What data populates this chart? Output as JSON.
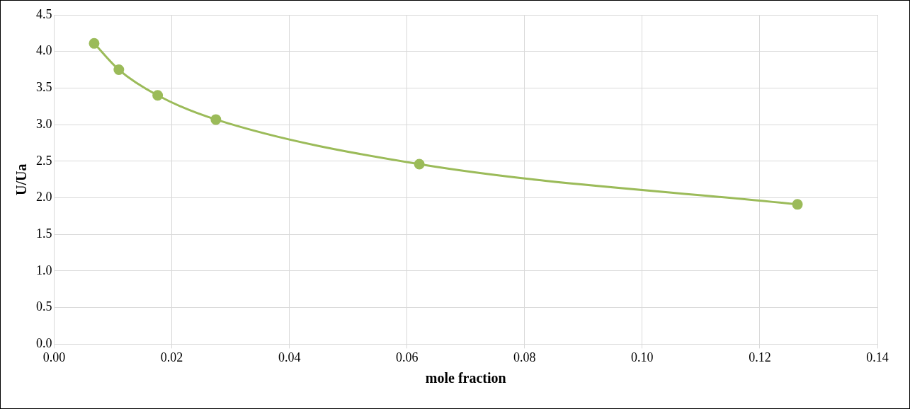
{
  "chart_data": {
    "type": "line",
    "xlabel": "mole fraction",
    "ylabel": "U/Ua",
    "x": [
      0.0068,
      0.011,
      0.0176,
      0.0275,
      0.0621,
      0.1264
    ],
    "series": [
      {
        "color": "#9bbb59",
        "values": [
          4.11,
          3.75,
          3.4,
          3.07,
          2.46,
          1.91
        ]
      }
    ],
    "xlim": [
      0,
      0.14
    ],
    "xticks": [
      {
        "value": 0,
        "label": "0.00"
      },
      {
        "value": 0.02,
        "label": "0.02"
      },
      {
        "value": 0.04,
        "label": "0.04"
      },
      {
        "value": 0.06,
        "label": "0.06"
      },
      {
        "value": 0.08,
        "label": "0.08"
      },
      {
        "value": 0.1,
        "label": "0.10"
      },
      {
        "value": 0.12,
        "label": "0.12"
      },
      {
        "value": 0.14,
        "label": "0.14"
      }
    ],
    "ylim": [
      0,
      4.5
    ],
    "yticks": [
      {
        "value": 0,
        "label": "0.0"
      },
      {
        "value": 0.5,
        "label": "0.5"
      },
      {
        "value": 1,
        "label": "1.0"
      },
      {
        "value": 1.5,
        "label": "1.5"
      },
      {
        "value": 2,
        "label": "2.0"
      },
      {
        "value": 2.5,
        "label": "2.5"
      },
      {
        "value": 3,
        "label": "3.0"
      },
      {
        "value": 3.5,
        "label": "3.5"
      },
      {
        "value": 4,
        "label": "4.0"
      },
      {
        "value": 4.5,
        "label": "4.5"
      }
    ],
    "grid": true,
    "legend": false,
    "marker": "circle",
    "line_style": "solid"
  }
}
